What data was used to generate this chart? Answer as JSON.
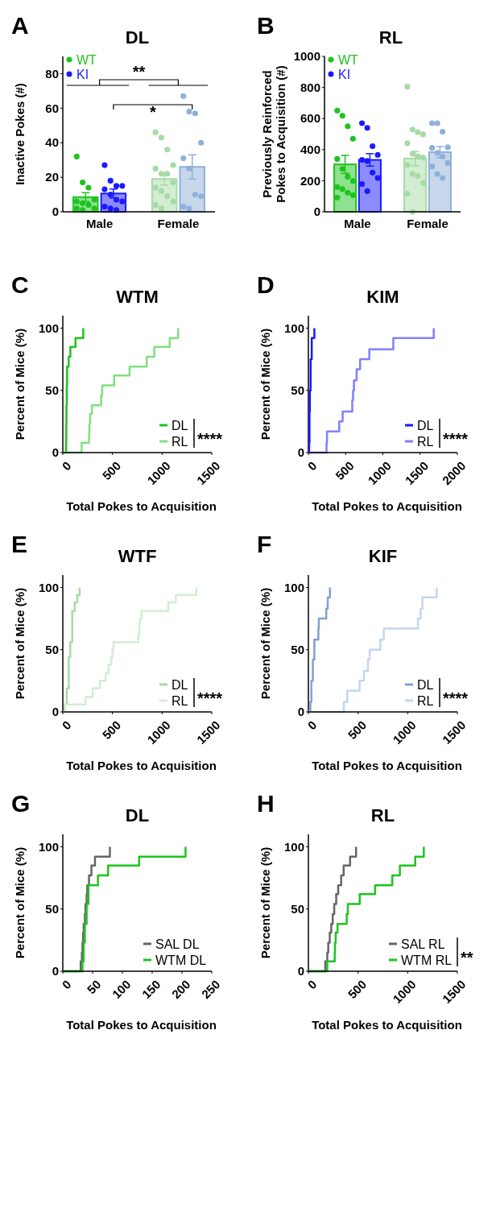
{
  "chart_data": [
    {
      "type": "bar",
      "title": "DL",
      "ylabel": "Inactive Pokes (#)",
      "annotations": [
        "A",
        "**",
        "*"
      ],
      "categories": [
        "Male",
        "Female"
      ],
      "ylim": [
        0,
        90
      ],
      "yticks": [
        0,
        20,
        40,
        60,
        80
      ],
      "legend": "top left",
      "marker": "circle",
      "series": [
        {
          "name": "WT",
          "type": "bar",
          "color": "#1ec41e",
          "colors": [
            "#1ec41e",
            "#a6dba6"
          ],
          "values": [
            8.5,
            19
          ],
          "errors": [
            2.6,
            3.5
          ]
        },
        {
          "name": "KI",
          "type": "bar",
          "color": "#1a1aff",
          "colors": [
            "#1a1aff",
            "#8fb0d9"
          ],
          "values": [
            10.6,
            26
          ],
          "errors": [
            2.6,
            7
          ]
        },
        {
          "type": "scatter",
          "color": "#1ec41e",
          "x": [
            "Male",
            "Male",
            "Male",
            "Male",
            "Male",
            "Male",
            "Male",
            "Male",
            "Male",
            "Male"
          ],
          "values": [
            32,
            17,
            14,
            7,
            6,
            5,
            4,
            2,
            2,
            1
          ]
        },
        {
          "type": "scatter",
          "color": "#1a1aff",
          "x": [
            "Male",
            "Male",
            "Male",
            "Male",
            "Male",
            "Male",
            "Male",
            "Male",
            "Male",
            "Male",
            "Male"
          ],
          "values": [
            27,
            18,
            15,
            15,
            13,
            10,
            7,
            6,
            3,
            2,
            1
          ]
        },
        {
          "type": "scatter",
          "color": "#a6dba6",
          "x": [
            "Female",
            "Female",
            "Female",
            "Female",
            "Female",
            "Female",
            "Female",
            "Female",
            "Female",
            "Female",
            "Female",
            "Female",
            "Female",
            "Female"
          ],
          "values": [
            46,
            43,
            36,
            27,
            25,
            22,
            22,
            17,
            14,
            12,
            9,
            6,
            4,
            2
          ]
        },
        {
          "type": "scatter",
          "color": "#8fb0d9",
          "x": [
            "Female",
            "Female",
            "Female",
            "Female",
            "Female",
            "Female",
            "Female",
            "Female",
            "Female",
            "Female"
          ],
          "values": [
            67,
            58,
            57,
            40,
            31,
            25,
            10,
            9,
            3,
            2
          ]
        }
      ]
    },
    {
      "type": "bar",
      "title": "RL",
      "ylabel": "Previously Reinforced\nPokes to Acquisition (#)",
      "annotations": [
        "B"
      ],
      "categories": [
        "Male",
        "Female"
      ],
      "ylim": [
        0,
        1000
      ],
      "yticks": [
        0,
        200,
        400,
        600,
        800,
        1000
      ],
      "legend": "top left",
      "marker": "circle",
      "series": [
        {
          "name": "WT",
          "type": "bar",
          "color": "#1ec41e",
          "colors": [
            "#1ec41e",
            "#a6dba6"
          ],
          "values": [
            305,
            343
          ],
          "errors": [
            58,
            46
          ]
        },
        {
          "name": "KI",
          "type": "bar",
          "color": "#1a1aff",
          "colors": [
            "#1a1aff",
            "#8fb0d9"
          ],
          "values": [
            334,
            384
          ],
          "errors": [
            40,
            36
          ]
        },
        {
          "type": "scatter",
          "color": "#1ec41e",
          "x": [
            "Male",
            "Male",
            "Male",
            "Male",
            "Male",
            "Male",
            "Male",
            "Male",
            "Male",
            "Male",
            "Male",
            "Male",
            "Male"
          ],
          "values": [
            651,
            618,
            550,
            470,
            340,
            276,
            226,
            198,
            159,
            146,
            123,
            107,
            92
          ]
        },
        {
          "type": "scatter",
          "color": "#1a1aff",
          "x": [
            "Male",
            "Male",
            "Male",
            "Male",
            "Male",
            "Male",
            "Male",
            "Male",
            "Male",
            "Male"
          ],
          "values": [
            570,
            540,
            422,
            366,
            334,
            327,
            252,
            217,
            179,
            133
          ]
        },
        {
          "type": "scatter",
          "color": "#a6dba6",
          "x": [
            "Female",
            "Female",
            "Female",
            "Female",
            "Female",
            "Female",
            "Female",
            "Female",
            "Female",
            "Female",
            "Female",
            "Female",
            "Female",
            "Female"
          ],
          "values": [
            805,
            530,
            512,
            498,
            441,
            373,
            357,
            349,
            301,
            243,
            230,
            185,
            116,
            0
          ]
        },
        {
          "type": "scatter",
          "color": "#8fb0d9",
          "x": [
            "Female",
            "Female",
            "Female",
            "Female",
            "Female",
            "Female",
            "Female",
            "Female",
            "Female",
            "Female",
            "Female"
          ],
          "values": [
            570,
            570,
            515,
            415,
            411,
            379,
            356,
            314,
            292,
            243,
            217
          ]
        }
      ]
    },
    {
      "type": "step",
      "title": "WTM",
      "xlabel": "Total Pokes to Acquisition",
      "ylabel": "Percent of Mice (%)",
      "annotations": [
        "C",
        "****"
      ],
      "xlim": [
        0,
        1500
      ],
      "xticks": [
        0,
        500,
        1000,
        1500
      ],
      "ylim": [
        0,
        110
      ],
      "yticks": [
        0,
        50,
        100
      ],
      "legend": "bottom right",
      "series": [
        {
          "name": "DL",
          "color": "#1ec41e",
          "x": [
            0,
            33,
            35,
            37,
            40,
            43,
            59,
            76,
            128,
            206
          ],
          "values": [
            0,
            8,
            23,
            38,
            54,
            69,
            77,
            85,
            92,
            100
          ]
        },
        {
          "name": "RL",
          "color": "#80e080",
          "x": [
            0,
            190,
            265,
            268,
            275,
            293,
            386,
            397,
            517,
            672,
            845,
            921,
            1076,
            1162
          ],
          "values": [
            0,
            8,
            15,
            23,
            31,
            38,
            46,
            54,
            62,
            69,
            77,
            85,
            92,
            100
          ]
        }
      ]
    },
    {
      "type": "step",
      "title": "KIM",
      "xlabel": "Total Pokes to Acquisition",
      "ylabel": "Percent of Mice (%)",
      "annotations": [
        "D",
        "****"
      ],
      "xlim": [
        0,
        2000
      ],
      "xticks": [
        0,
        500,
        1000,
        1500,
        2000
      ],
      "ylim": [
        0,
        110
      ],
      "yticks": [
        0,
        50,
        100
      ],
      "legend": "bottom right",
      "series": [
        {
          "name": "DL",
          "color": "#1a1aff",
          "x": [
            0,
            10,
            15,
            20,
            30,
            45,
            80
          ],
          "values": [
            0,
            8,
            33,
            50,
            75,
            92,
            100
          ]
        },
        {
          "name": "RL",
          "color": "#8080ff",
          "x": [
            0,
            244,
            250,
            414,
            460,
            589,
            600,
            612,
            648,
            694,
            818,
            1140,
            1683
          ],
          "values": [
            0,
            8,
            17,
            25,
            33,
            42,
            50,
            58,
            67,
            75,
            83,
            92,
            100
          ]
        }
      ]
    },
    {
      "type": "step",
      "title": "WTF",
      "xlabel": "Total Pokes to Acquisition",
      "ylabel": "Percent of Mice (%)",
      "annotations": [
        "E",
        "****"
      ],
      "xlim": [
        0,
        1500
      ],
      "xticks": [
        0,
        500,
        1000,
        1500
      ],
      "ylim": [
        0,
        110
      ],
      "yticks": [
        0,
        50,
        100
      ],
      "legend": "bottom right",
      "series": [
        {
          "name": "DL",
          "color": "#a6dba6",
          "x": [
            0,
            20,
            40,
            60,
            75,
            95,
            120,
            145,
            170
          ],
          "values": [
            0,
            6,
            19,
            44,
            56,
            81,
            88,
            94,
            100
          ]
        },
        {
          "name": "RL",
          "color": "#d3edd3",
          "x": [
            0,
            25,
            230,
            302,
            374,
            431,
            460,
            489,
            500,
            510,
            759,
            770,
            775,
            793,
            1062,
            1138,
            1345
          ],
          "values": [
            0,
            6,
            12,
            19,
            25,
            31,
            38,
            44,
            50,
            56,
            62,
            69,
            75,
            81,
            88,
            94,
            100
          ]
        }
      ]
    },
    {
      "type": "step",
      "title": "KIF",
      "xlabel": "Total Pokes to Acquisition",
      "ylabel": "Percent of Mice (%)",
      "annotations": [
        "F",
        "****"
      ],
      "xlim": [
        0,
        1500
      ],
      "xticks": [
        0,
        500,
        1000,
        1500
      ],
      "ylim": [
        0,
        110
      ],
      "yticks": [
        0,
        50,
        100
      ],
      "legend": "bottom right",
      "series": [
        {
          "name": "DL",
          "color": "#7fa2d4",
          "x": [
            0,
            20,
            30,
            45,
            60,
            100,
            105,
            180,
            195,
            217
          ],
          "values": [
            0,
            8,
            25,
            42,
            58,
            67,
            75,
            83,
            92,
            100
          ]
        },
        {
          "name": "RL",
          "color": "#c5d6ee",
          "x": [
            0,
            357,
            391,
            516,
            559,
            600,
            617,
            724,
            759,
            1103,
            1130,
            1148,
            1293
          ],
          "values": [
            0,
            8,
            17,
            25,
            33,
            42,
            50,
            58,
            67,
            75,
            83,
            92,
            100
          ]
        }
      ]
    },
    {
      "type": "step",
      "title": "DL",
      "xlabel": "Total Pokes to Acquisition",
      "ylabel": "Percent of Mice (%)",
      "annotations": [
        "G"
      ],
      "xlim": [
        0,
        250
      ],
      "xticks": [
        0,
        50,
        100,
        150,
        200,
        250
      ],
      "ylim": [
        0,
        110
      ],
      "yticks": [
        0,
        50,
        100
      ],
      "legend": "bottom right",
      "series": [
        {
          "name": "SAL DL",
          "color": "#666666",
          "x": [
            0,
            30,
            32,
            33,
            34,
            35,
            37,
            38,
            40,
            41,
            44,
            48,
            54,
            79
          ],
          "values": [
            0,
            8,
            15,
            23,
            31,
            38,
            46,
            54,
            62,
            69,
            77,
            85,
            92,
            100
          ]
        },
        {
          "name": "WTM DL",
          "color": "#1ec41e",
          "x": [
            0,
            33,
            35,
            37,
            40,
            43,
            59,
            76,
            128,
            206
          ],
          "values": [
            0,
            8,
            23,
            38,
            54,
            69,
            77,
            85,
            92,
            100
          ]
        }
      ]
    },
    {
      "type": "step",
      "title": "RL",
      "xlabel": "Total Pokes to Acquisition",
      "ylabel": "Percent of Mice (%)",
      "annotations": [
        "H",
        "**"
      ],
      "xlim": [
        0,
        1500
      ],
      "xticks": [
        0,
        500,
        1000,
        1500
      ],
      "ylim": [
        0,
        110
      ],
      "yticks": [
        0,
        50,
        100
      ],
      "legend": "bottom right",
      "series": [
        {
          "name": "SAL RL",
          "color": "#666666",
          "x": [
            0,
            170,
            190,
            200,
            215,
            230,
            245,
            260,
            280,
            300,
            330,
            355,
            420,
            480
          ],
          "values": [
            0,
            8,
            15,
            23,
            31,
            38,
            46,
            54,
            62,
            69,
            77,
            85,
            92,
            100
          ]
        },
        {
          "name": "WTM RL",
          "color": "#1ec41e",
          "x": [
            0,
            190,
            265,
            268,
            275,
            293,
            386,
            397,
            517,
            672,
            845,
            921,
            1076,
            1162
          ],
          "values": [
            0,
            8,
            15,
            23,
            31,
            38,
            46,
            54,
            62,
            69,
            77,
            85,
            92,
            100
          ]
        }
      ]
    }
  ]
}
